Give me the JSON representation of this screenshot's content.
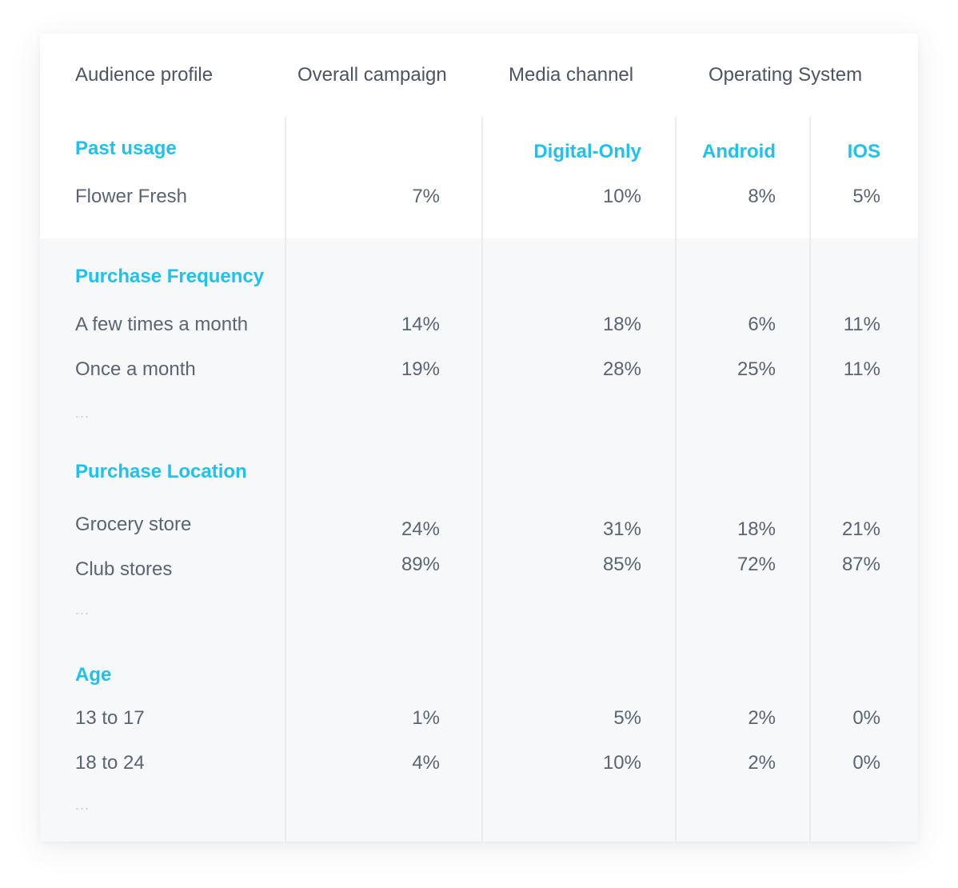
{
  "header": {
    "audience_profile": "Audience profile",
    "overall_campaign": "Overall campaign",
    "media_channel": "Media channel",
    "operating_system": "Operating System"
  },
  "subheaders": {
    "digital_only": "Digital-Only",
    "android": "Android",
    "ios": "IOS"
  },
  "sections": [
    {
      "title": "Past usage",
      "rows": [
        {
          "label": "Flower Fresh",
          "overall": "7%",
          "digital": "10%",
          "android": "8%",
          "ios": "5%"
        }
      ]
    },
    {
      "title": "Purchase Frequency",
      "rows": [
        {
          "label": "A few times a month",
          "overall": "14%",
          "digital": "18%",
          "android": "6%",
          "ios": "11%"
        },
        {
          "label": "Once a month",
          "overall": "19%",
          "digital": "28%",
          "android": "25%",
          "ios": "11%"
        }
      ],
      "more": "..."
    },
    {
      "title": "Purchase Location",
      "rows": [
        {
          "label": "Grocery store",
          "overall": "24%",
          "digital": "31%",
          "android": "18%",
          "ios": "21%"
        },
        {
          "label": "Club stores",
          "overall": "89%",
          "digital": "85%",
          "android": "72%",
          "ios": "87%"
        }
      ],
      "more": "..."
    },
    {
      "title": "Age",
      "rows": [
        {
          "label": "13 to 17",
          "overall": "1%",
          "digital": "5%",
          "android": "2%",
          "ios": "0%"
        },
        {
          "label": "18 to 24",
          "overall": "4%",
          "digital": "10%",
          "android": "2%",
          "ios": "0%"
        }
      ],
      "more": "..."
    }
  ],
  "colors": {
    "category": "#1ec2f0",
    "header_text": "#4b5565",
    "body_text": "#5b6473",
    "shaded_row": "#f7f8fa",
    "divider": "#e9ecf1"
  }
}
